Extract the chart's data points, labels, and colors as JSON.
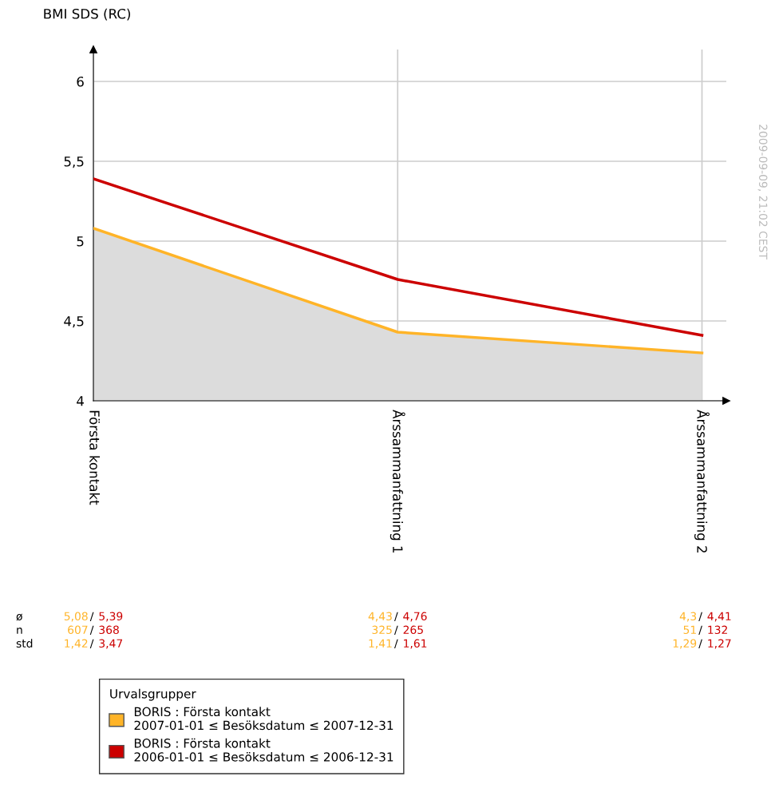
{
  "chart_data": {
    "type": "line",
    "ylabel": "BMI SDS (RC)",
    "categories": [
      "Första kontakt",
      "Årssammanfattning 1",
      "Årssammanfattning 2"
    ],
    "series": [
      {
        "name": "BORIS : Första kontakt\n2007-01-01 ≤ Besöksdatum ≤ 2007-12-31",
        "color": "#ffb428",
        "type": "area",
        "values": [
          5.08,
          4.43,
          4.3
        ]
      },
      {
        "name": "BORIS : Första kontakt\n2006-01-01 ≤ Besöksdatum ≤ 2006-12-31",
        "color": "#cc0000",
        "values": [
          5.39,
          4.76,
          4.41
        ]
      }
    ],
    "ylim": [
      4,
      6.2
    ],
    "yticks": [
      4,
      {
        "value": 4.5,
        "label": "4,5"
      },
      5,
      {
        "value": 5.5,
        "label": "5,5"
      },
      6
    ],
    "grid": true,
    "legend": "bottom",
    "legend_title": "Urvalsgrupper",
    "marker": "none",
    "line_style": "solid",
    "annotations": [
      "ø",
      "n",
      "std",
      "5,08 / 5,39",
      "4,43 / 4,76",
      "4,3 / 4,41",
      "607 / 368",
      "325 / 265",
      "51 / 132",
      "1,42 / 3,47",
      "1,41 / 1,61",
      "1,29 / 1,27",
      "2009-09-09, 21:02 CEST"
    ]
  }
}
